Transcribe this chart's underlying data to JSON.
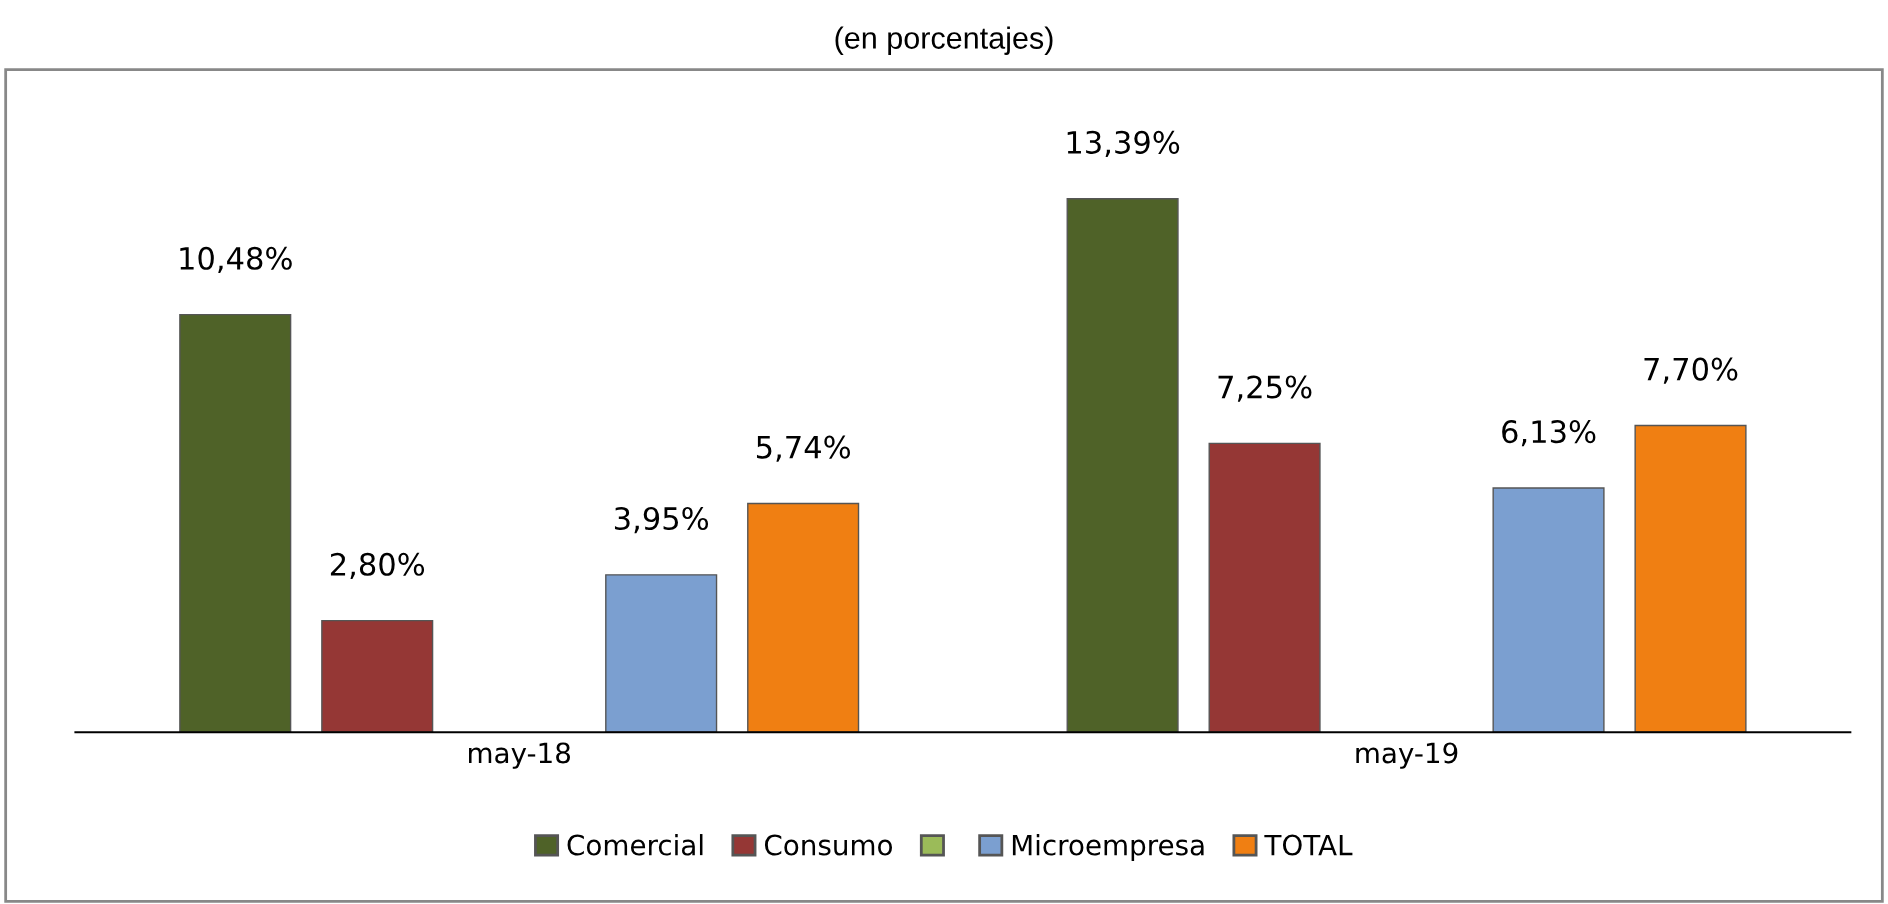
{
  "chart_data": {
    "type": "bar",
    "title": "(en porcentajes)",
    "categories": [
      "may-18",
      "may-19"
    ],
    "series": [
      {
        "name": "Comercial",
        "color": "#4f6228",
        "values": [
          10.48,
          13.39
        ],
        "value_labels": [
          "10,48%",
          "13,39%"
        ]
      },
      {
        "name": "Consumo",
        "color": "#953735",
        "values": [
          2.8,
          7.25
        ],
        "value_labels": [
          "2,80%",
          "7,25%"
        ]
      },
      {
        "color": "#9bbb59",
        "values": [
          null,
          null
        ]
      },
      {
        "name": "Microempresa",
        "color": "#7b9fd0",
        "values": [
          3.95,
          6.13
        ],
        "value_labels": [
          "3,95%",
          "6,13%"
        ]
      },
      {
        "name": "TOTAL",
        "color": "#f07f12",
        "values": [
          5.74,
          7.7
        ],
        "value_labels": [
          "5,74%",
          "7,70%"
        ]
      }
    ],
    "legend": "bottom",
    "grid": false
  }
}
